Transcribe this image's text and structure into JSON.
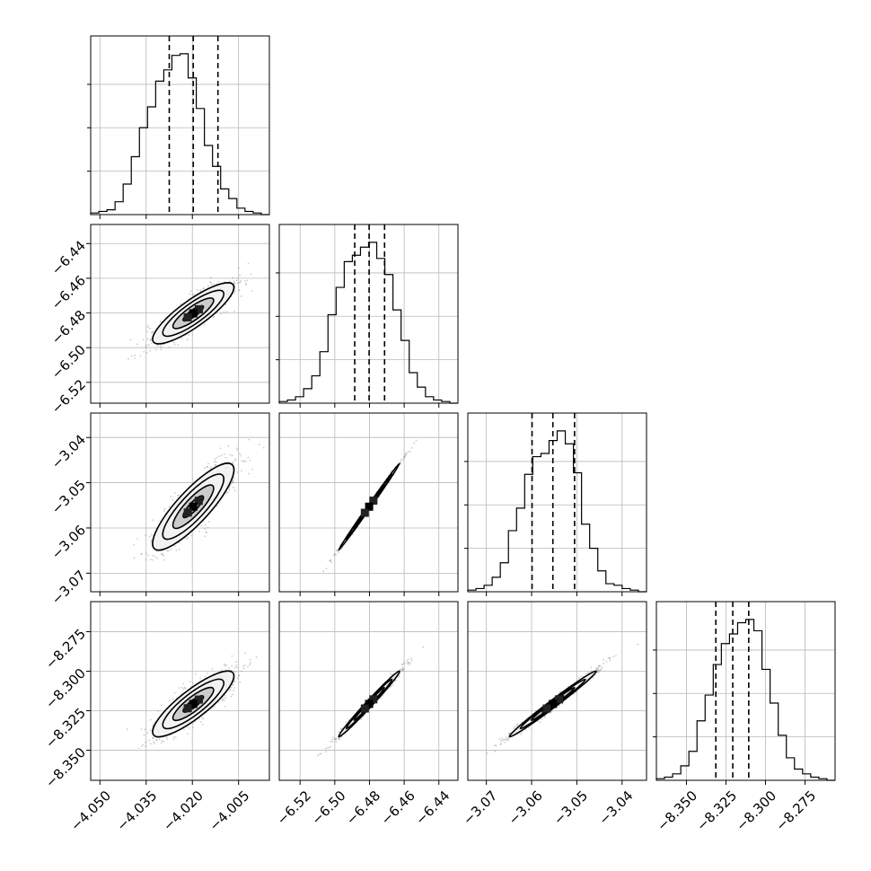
{
  "chart_data": {
    "type": "corner",
    "title": "",
    "parameters": [
      {
        "index": 0,
        "range": [
          -4.053,
          -3.995
        ],
        "ticks": [
          -4.05,
          -4.035,
          -4.02,
          -4.005
        ],
        "tick_labels": [
          "−4.050",
          "−4.035",
          "−4.020",
          "−4.005"
        ],
        "quantiles": [
          -4.0275,
          -4.0197,
          -4.0117
        ],
        "mean": -4.0197,
        "sd": 0.0066
      },
      {
        "index": 1,
        "range": [
          -6.532,
          -6.429
        ],
        "ticks": [
          -6.52,
          -6.5,
          -6.48,
          -6.46,
          -6.44
        ],
        "tick_labels": [
          "−6.52",
          "−6.50",
          "−6.48",
          "−6.46",
          "−6.44"
        ],
        "quantiles": [
          -6.4885,
          -6.4802,
          -6.4713
        ],
        "mean": -6.4802,
        "sd": 0.0088
      },
      {
        "index": 2,
        "range": [
          -3.0741,
          -3.0346
        ],
        "ticks": [
          -3.07,
          -3.06,
          -3.05,
          -3.04
        ],
        "tick_labels": [
          "−3.07",
          "−3.06",
          "−3.05",
          "−3.04"
        ],
        "quantiles": [
          -3.0599,
          -3.0553,
          -3.0505
        ],
        "mean": -3.0553,
        "sd": 0.0048
      },
      {
        "index": 3,
        "range": [
          -8.369,
          -8.256
        ],
        "ticks": [
          -8.35,
          -8.325,
          -8.3,
          -8.275
        ],
        "tick_labels": [
          "−8.350",
          "−8.325",
          "−8.300",
          "−8.275"
        ],
        "quantiles": [
          -8.3314,
          -8.3207,
          -8.3106
        ],
        "mean": -8.3207,
        "sd": 0.0104
      }
    ],
    "correlations": [
      [
        1,
        0.85,
        0.85,
        0.85
      ],
      [
        0.85,
        1,
        0.998,
        0.99
      ],
      [
        0.85,
        0.998,
        1,
        0.99
      ],
      [
        0.85,
        0.99,
        0.99,
        1
      ]
    ],
    "histograms": [
      [
        0.01,
        0.02,
        0.03,
        0.08,
        0.19,
        0.36,
        0.54,
        0.67,
        0.83,
        0.9,
        0.99,
        1.0,
        0.85,
        0.66,
        0.43,
        0.3,
        0.16,
        0.1,
        0.04,
        0.02,
        0.01,
        0.0
      ],
      [
        0.01,
        0.02,
        0.04,
        0.09,
        0.17,
        0.32,
        0.55,
        0.72,
        0.88,
        0.92,
        0.97,
        1.0,
        0.9,
        0.8,
        0.58,
        0.39,
        0.19,
        0.1,
        0.04,
        0.02,
        0.01,
        0.0
      ],
      [
        0.01,
        0.02,
        0.04,
        0.09,
        0.18,
        0.38,
        0.52,
        0.73,
        0.84,
        0.86,
        0.94,
        1.0,
        0.92,
        0.74,
        0.42,
        0.27,
        0.13,
        0.05,
        0.04,
        0.02,
        0.01,
        0.0
      ],
      [
        0.01,
        0.02,
        0.04,
        0.09,
        0.18,
        0.37,
        0.53,
        0.72,
        0.85,
        0.91,
        0.98,
        1.0,
        0.93,
        0.69,
        0.48,
        0.28,
        0.14,
        0.07,
        0.04,
        0.02,
        0.01,
        0.0
      ]
    ],
    "histogram_max_tick_fraction": 0.27,
    "contour_levels_sigma": [
      0.5,
      1.0,
      1.5,
      2.0
    ],
    "grid": true,
    "xlabels": [
      "",
      "",
      "",
      ""
    ],
    "ylabels": [
      "",
      "",
      "",
      ""
    ]
  },
  "colors": {
    "points": "#8f8f8f",
    "contour_fill_outer": "#f3f3f3",
    "contour_fill_mid": "#c8c8c8",
    "contour_fill_inner": "#8a8a8a",
    "contour_line": "#000000",
    "grid": "#b8b8b8",
    "axis": "#000000"
  }
}
